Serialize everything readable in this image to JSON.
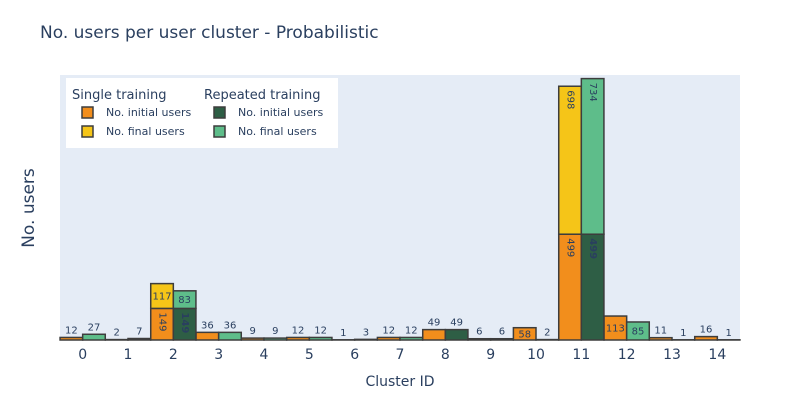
{
  "chart_data": {
    "type": "bar",
    "title": "No. users per user cluster - Probabilistic",
    "xlabel": "Cluster ID",
    "ylabel": "No. users",
    "barmode": "stacked-grouped",
    "ylim": [
      0,
      1250
    ],
    "grid": false,
    "legend_position": "top-left",
    "categories": [
      "0",
      "1",
      "2",
      "3",
      "4",
      "5",
      "6",
      "7",
      "8",
      "9",
      "10",
      "11",
      "12",
      "13",
      "14"
    ],
    "groups": [
      {
        "name": "Single training",
        "series": [
          {
            "name": "No. initial users",
            "color": "#f28e1c",
            "values": [
              12,
              2,
              149,
              36,
              9,
              12,
              1,
              12,
              49,
              6,
              58,
              499,
              113,
              11,
              16
            ]
          },
          {
            "name": "No. final users",
            "color": "#f5c518",
            "values": [
              0,
              0,
              117,
              0,
              0,
              0,
              0,
              0,
              0,
              0,
              0,
              698,
              0,
              0,
              0
            ]
          }
        ]
      },
      {
        "name": "Repeated training",
        "series": [
          {
            "name": "No. initial users",
            "color": "#2e5e45",
            "values": [
              0,
              0,
              149,
              0,
              0,
              0,
              0,
              0,
              49,
              0,
              0,
              499,
              0,
              0,
              0
            ]
          },
          {
            "name": "No. final users",
            "color": "#5ebd8a",
            "values": [
              27,
              7,
              83,
              36,
              9,
              12,
              3,
              12,
              0,
              6,
              2,
              734,
              85,
              1,
              1
            ]
          }
        ]
      }
    ]
  }
}
